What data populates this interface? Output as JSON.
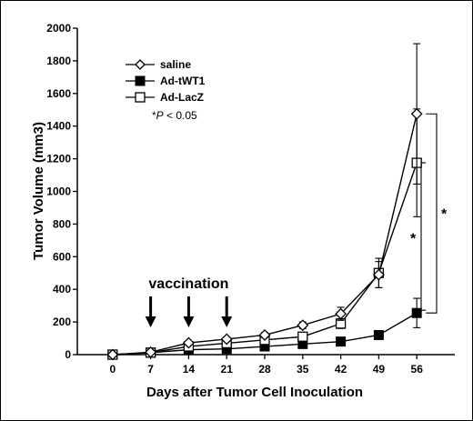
{
  "chart_data": {
    "type": "line",
    "title": "",
    "xlabel": "Days after Tumor Cell Inoculation",
    "ylabel": "Tumor Volume (mm3)",
    "x": [
      0,
      7,
      14,
      21,
      28,
      35,
      42,
      49,
      56
    ],
    "x_ticks": [
      "0",
      "7",
      "14",
      "21",
      "28",
      "35",
      "42",
      "49",
      "56"
    ],
    "y_ticks": [
      "0",
      "200",
      "400",
      "600",
      "800",
      "1000",
      "1200",
      "1400",
      "1600",
      "1800",
      "2000"
    ],
    "xlim": [
      -6.5,
      63
    ],
    "ylim": [
      0,
      2000
    ],
    "grid": false,
    "legend_position": "top-left",
    "series": [
      {
        "name": "saline",
        "marker": "diamond-open",
        "values": [
          0,
          15,
          72,
          95,
          120,
          180,
          250,
          490,
          1475
        ],
        "errors": [
          0,
          5,
          10,
          12,
          15,
          20,
          40,
          80,
          430
        ],
        "color": "#000000"
      },
      {
        "name": "Ad-tWT1",
        "marker": "square-filled",
        "values": [
          0,
          12,
          30,
          35,
          50,
          65,
          80,
          120,
          255
        ],
        "errors": [
          0,
          3,
          5,
          6,
          8,
          10,
          15,
          25,
          90
        ],
        "color": "#000000"
      },
      {
        "name": "Ad-LacZ",
        "marker": "square-open",
        "values": [
          0,
          12,
          50,
          70,
          90,
          110,
          190,
          500,
          1175
        ],
        "errors": [
          0,
          4,
          8,
          10,
          12,
          15,
          30,
          90,
          330
        ],
        "color": "#000000"
      }
    ],
    "annotations": {
      "significance_note": "*P < 0.05",
      "significance_note_prefix": "*",
      "significance_note_p": "P",
      "significance_note_rest": " < 0.05",
      "vaccination_label": "vaccination",
      "vaccination_days": [
        7,
        14,
        21
      ],
      "star": "*"
    }
  }
}
